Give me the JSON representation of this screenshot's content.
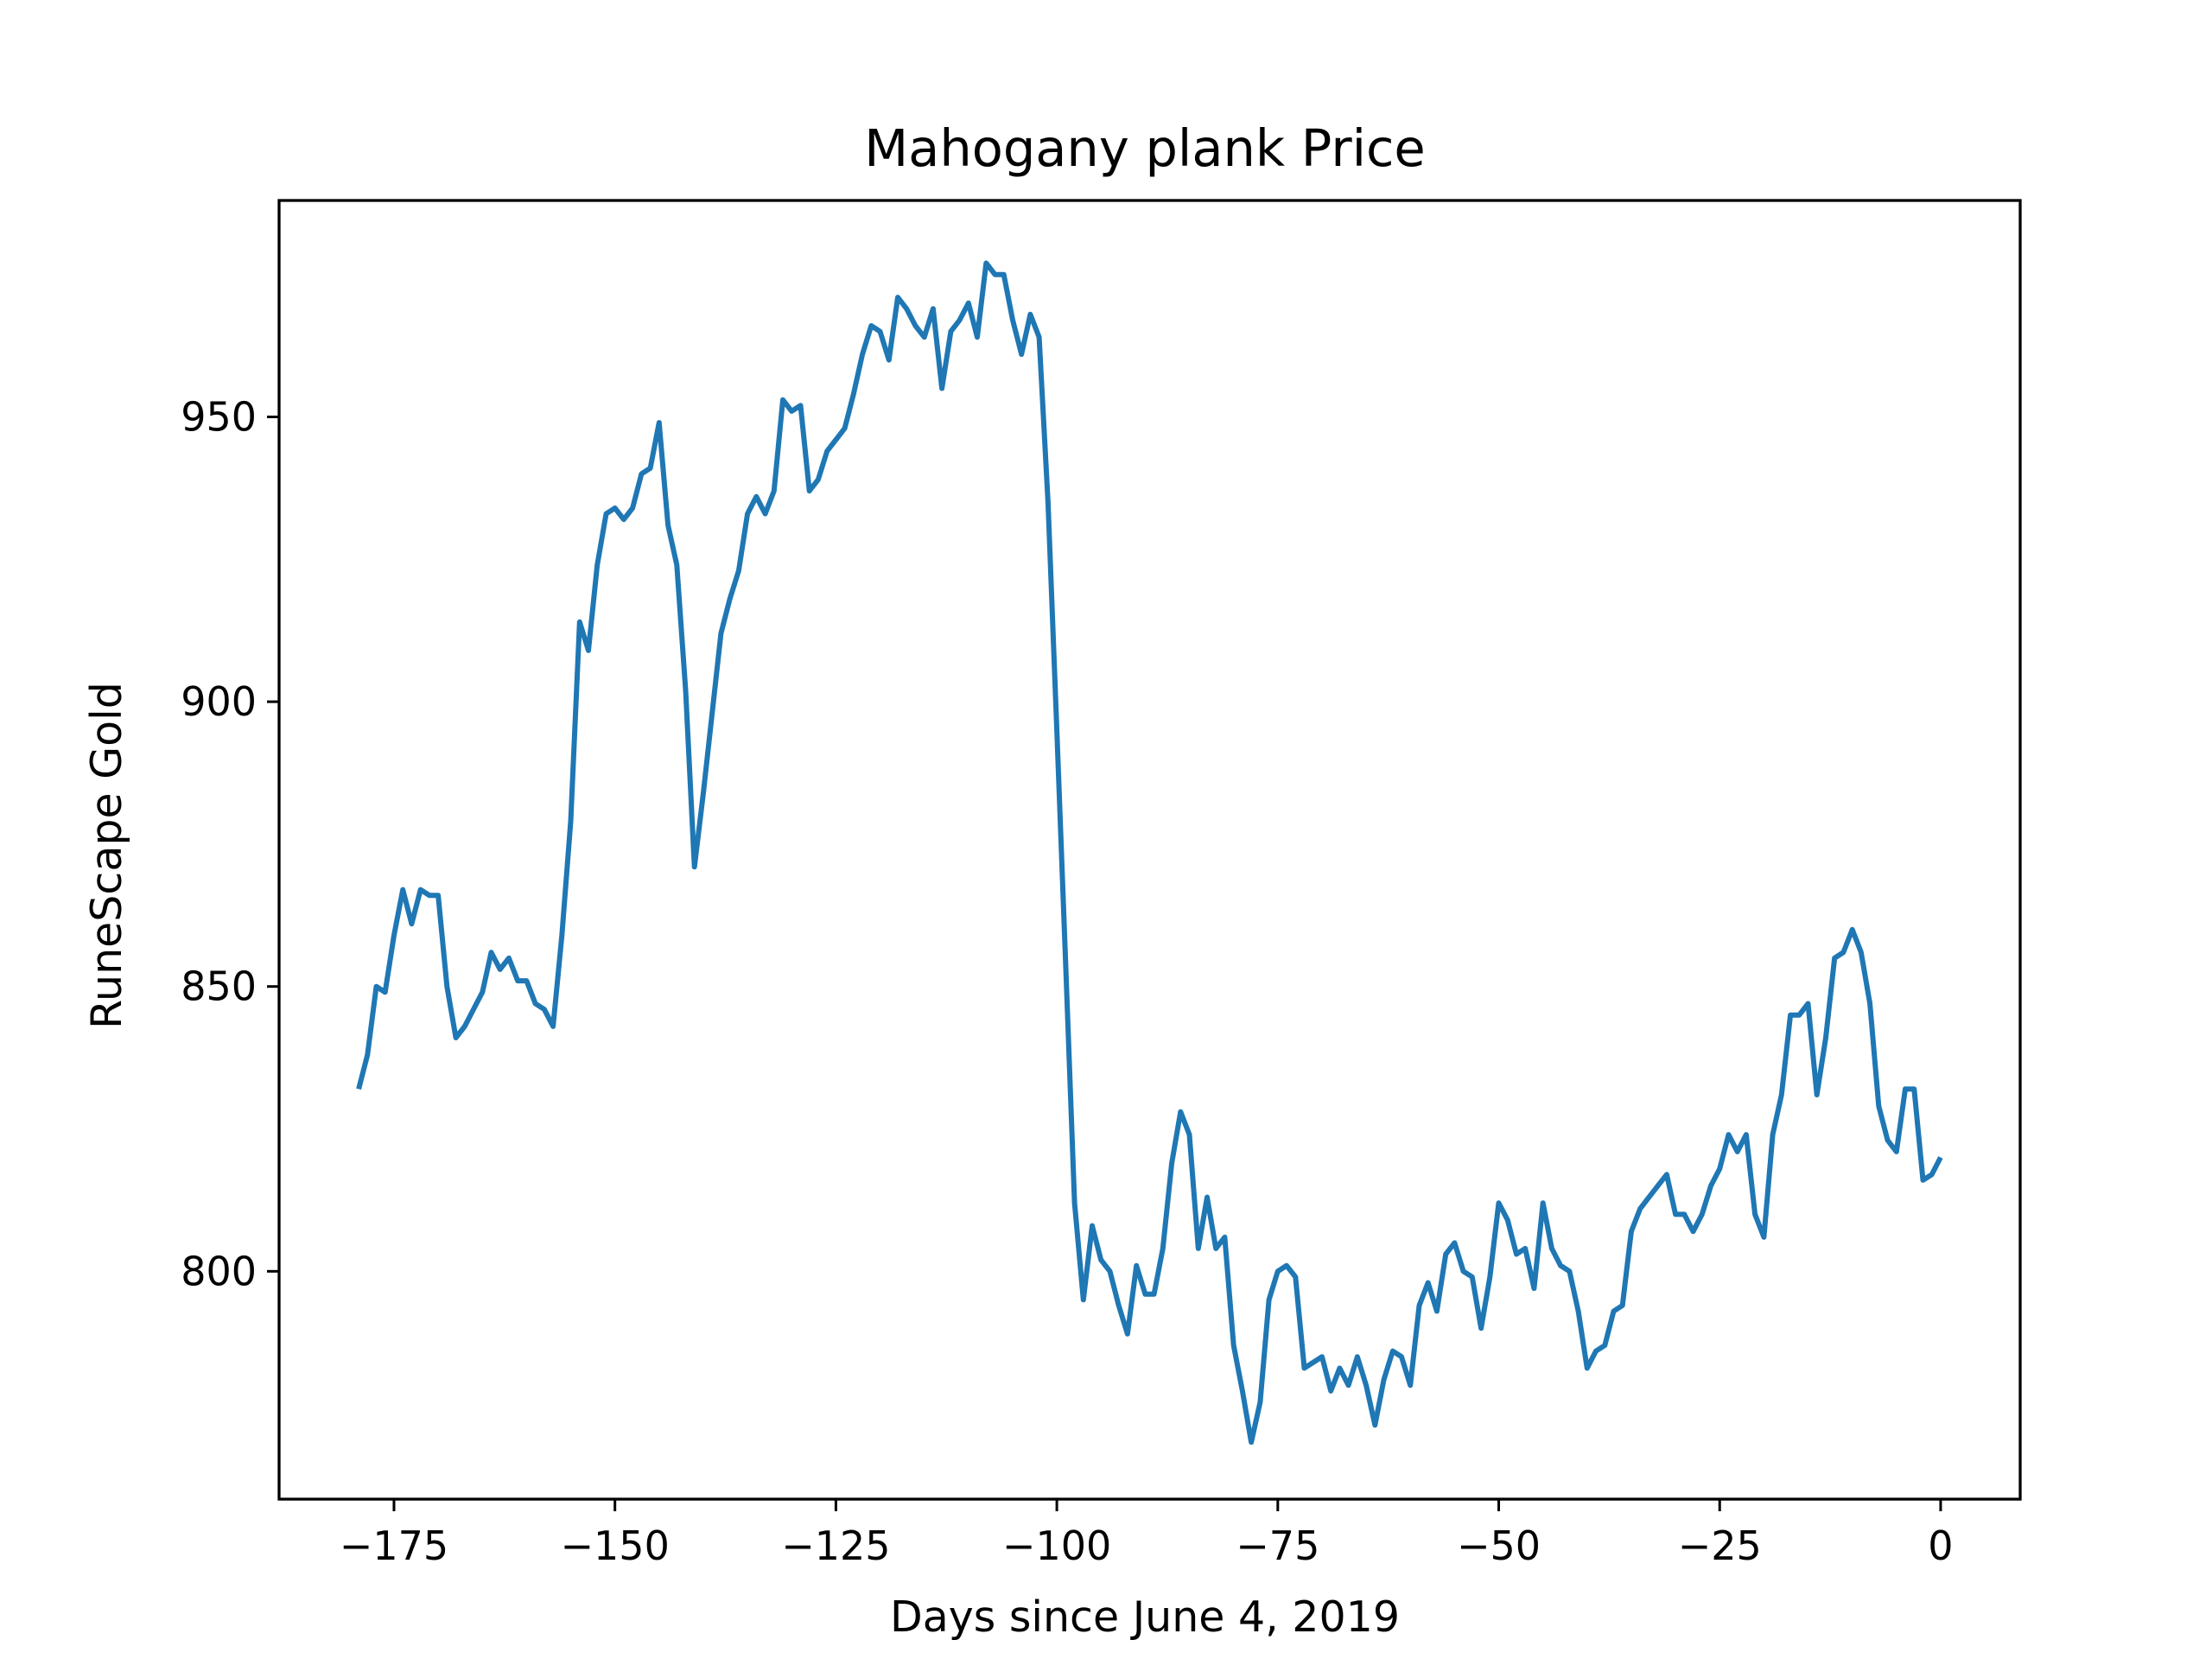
{
  "chart_data": {
    "type": "line",
    "title": "Mahogany plank Price",
    "xlabel": "Days since June 4, 2019",
    "ylabel": "RuneScape Gold",
    "xlim": [
      -188,
      9
    ],
    "ylim": [
      760,
      988
    ],
    "xticks": [
      -175,
      -150,
      -125,
      -100,
      -75,
      -50,
      -25,
      0
    ],
    "xtick_labels": [
      "−175",
      "−150",
      "−125",
      "−100",
      "−75",
      "−50",
      "−25",
      "0"
    ],
    "yticks": [
      800,
      850,
      900,
      950
    ],
    "ytick_labels": [
      "800",
      "850",
      "900",
      "950"
    ],
    "grid": false,
    "legend": "none",
    "series_color": "#1f77b4",
    "series": [
      {
        "x": [
          -179,
          -178,
          -177,
          -176,
          -175,
          -174,
          -173,
          -172,
          -171,
          -170,
          -169,
          -168,
          -167,
          -166,
          -165,
          -164,
          -163,
          -162,
          -161,
          -160,
          -159,
          -158,
          -157,
          -156,
          -155,
          -154,
          -153,
          -152,
          -151,
          -150,
          -149,
          -148,
          -147,
          -146,
          -145,
          -144,
          -143,
          -142,
          -141,
          -140,
          -139,
          -138,
          -137,
          -136,
          -135,
          -134,
          -133,
          -132,
          -131,
          -130,
          -129,
          -128,
          -127,
          -126,
          -125,
          -124,
          -123,
          -122,
          -121,
          -120,
          -119,
          -118,
          -117,
          -116,
          -115,
          -114,
          -113,
          -112,
          -111,
          -110,
          -109,
          -108,
          -107,
          -106,
          -105,
          -104,
          -103,
          -102,
          -101,
          -100,
          -99,
          -98,
          -97,
          -96,
          -95,
          -94,
          -93,
          -92,
          -91,
          -90,
          -89,
          -88,
          -87,
          -86,
          -85,
          -84,
          -83,
          -82,
          -81,
          -80,
          -79,
          -78,
          -77,
          -76,
          -75,
          -74,
          -73,
          -72,
          -71,
          -70,
          -69,
          -68,
          -67,
          -66,
          -65,
          -64,
          -63,
          -62,
          -61,
          -60,
          -59,
          -58,
          -57,
          -56,
          -55,
          -54,
          -53,
          -52,
          -51,
          -50,
          -49,
          -48,
          -47,
          -46,
          -45,
          -44,
          -43,
          -42,
          -41,
          -40,
          -39,
          -38,
          -37,
          -36,
          -35,
          -34,
          -33,
          -32,
          -31,
          -30,
          -29,
          -28,
          -27,
          -26,
          -25,
          -24,
          -23,
          -22,
          -21,
          -20,
          -19,
          -18,
          -17,
          -16,
          -15,
          -14,
          -13,
          -12,
          -11,
          -10,
          -9,
          -8,
          -7,
          -6,
          -5,
          -4,
          -3,
          -2,
          -1,
          0
        ],
        "y": [
          832,
          838,
          850,
          849,
          859,
          867,
          861,
          867,
          866,
          866,
          850,
          841,
          843,
          846,
          849,
          856,
          853,
          855,
          851,
          851,
          847,
          846,
          843,
          859,
          879,
          914,
          909,
          924,
          933,
          934,
          932,
          934,
          940,
          941,
          949,
          931,
          924,
          902,
          871,
          884,
          898,
          912,
          918,
          923,
          933,
          936,
          933,
          937,
          953,
          951,
          952,
          937,
          939,
          944,
          946,
          948,
          954,
          961,
          966,
          965,
          960,
          971,
          969,
          966,
          964,
          969,
          955,
          965,
          967,
          970,
          964,
          977,
          975,
          975,
          967,
          961,
          968,
          964,
          935,
          895,
          854,
          812,
          795,
          808,
          802,
          800,
          794,
          789,
          801,
          796,
          796,
          804,
          819,
          828,
          824,
          804,
          813,
          804,
          806,
          787,
          779,
          770,
          777,
          795,
          800,
          801,
          799,
          783,
          784,
          785,
          779,
          783,
          780,
          785,
          780,
          773,
          781,
          786,
          785,
          780,
          794,
          798,
          793,
          803,
          805,
          800,
          799,
          790,
          799,
          812,
          809,
          803,
          804,
          797,
          812,
          804,
          801,
          800,
          793,
          783,
          786,
          787,
          793,
          794,
          807,
          811,
          813,
          815,
          817,
          810,
          810,
          807,
          810,
          815,
          818,
          824,
          821,
          824,
          810,
          806,
          824,
          831,
          845,
          845,
          847,
          831,
          841,
          855,
          856,
          860,
          856,
          847,
          829,
          823,
          821,
          832,
          832,
          816,
          817,
          820
        ]
      }
    ]
  }
}
